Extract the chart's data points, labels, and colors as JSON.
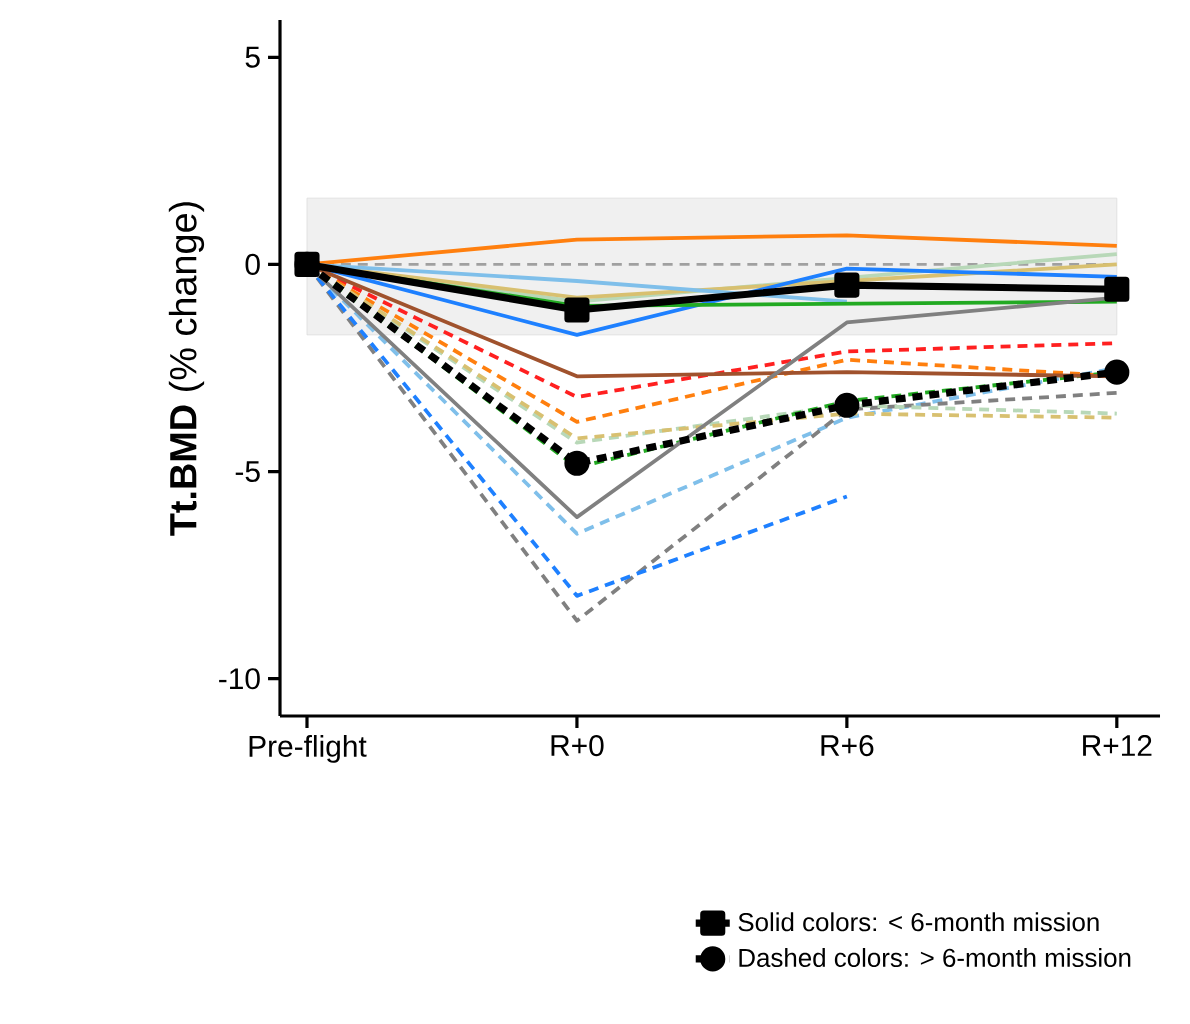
{
  "chart_data": {
    "type": "line",
    "ylabel": "**Tt.BMD** (% change)",
    "categories": [
      "Pre-flight",
      "R+0",
      "R+6",
      "R+12"
    ],
    "ylim": [
      -10.9,
      5.9
    ],
    "yticks": [
      -10,
      -5,
      0,
      5
    ],
    "grid": false,
    "legend": "bottom",
    "bands": [
      {
        "axis": "y",
        "from": -1.7,
        "to": 1.6,
        "color": "#f0f0f0"
      }
    ],
    "ref_lines": [
      {
        "axis": "y",
        "value": 0,
        "color": "#a0a0a0",
        "line_style": "dashed"
      }
    ],
    "series": [
      {
        "color": "#7fbfea",
        "line_style": "dashed",
        "marker": "none",
        "values": [
          0,
          -6.5,
          -3.7,
          -2.5
        ]
      },
      {
        "color": "#808080",
        "line_style": "dashed",
        "marker": "none",
        "values": [
          0,
          -8.6,
          -3.5,
          -3.1
        ]
      },
      {
        "color": "#1e80ff",
        "line_style": "dashed",
        "marker": "none",
        "values": [
          0,
          -8.0,
          -5.6,
          null
        ]
      },
      {
        "color": "#ff2020",
        "line_style": "dashed",
        "marker": "none",
        "values": [
          0,
          -3.2,
          -2.1,
          -1.9
        ]
      },
      {
        "color": "#ff7f0e",
        "line_style": "dashed",
        "marker": "none",
        "values": [
          0,
          -3.8,
          -2.3,
          -2.7
        ]
      },
      {
        "color": "#b8d8b8",
        "line_style": "dashed",
        "marker": "none",
        "values": [
          0,
          -4.3,
          -3.4,
          -3.6
        ]
      },
      {
        "color": "#d8c070",
        "line_style": "dashed",
        "marker": "none",
        "values": [
          0,
          -4.2,
          -3.6,
          -3.7
        ]
      },
      {
        "color": "#22aa22",
        "line_style": "dashed",
        "marker": "none",
        "values": [
          0,
          -4.9,
          -3.3,
          -2.6
        ]
      },
      {
        "color": "#ff7f0e",
        "line_style": "solid",
        "marker": "none",
        "values": [
          0,
          0.6,
          0.7,
          0.45
        ]
      },
      {
        "color": "#b8d8b8",
        "line_style": "solid",
        "marker": "none",
        "values": [
          0,
          -0.9,
          null,
          0.25
        ]
      },
      {
        "color": "#d8c070",
        "line_style": "solid",
        "marker": "none",
        "values": [
          0,
          -0.8,
          null,
          0.0
        ]
      },
      {
        "color": "#7fbfea",
        "line_style": "solid",
        "marker": "none",
        "values": [
          0,
          -0.4,
          -0.9,
          null
        ]
      },
      {
        "color": "#1e80ff",
        "line_style": "solid",
        "marker": "none",
        "values": [
          0,
          -1.7,
          -0.1,
          -0.3
        ]
      },
      {
        "color": "#22aa22",
        "line_style": "solid",
        "marker": "none",
        "values": [
          0,
          -1.0,
          null,
          -0.9
        ]
      },
      {
        "color": "#a0522d",
        "line_style": "solid",
        "marker": "none",
        "values": [
          0,
          -2.7,
          -2.6,
          -2.7
        ]
      },
      {
        "color": "#808080",
        "line_style": "solid",
        "marker": "none",
        "values": [
          0,
          -6.1,
          -1.4,
          -0.8
        ]
      },
      {
        "name": "Solid colors: < 6-month mission",
        "color": "#000000",
        "line_style": "solid",
        "marker": "square",
        "values": [
          0,
          -1.1,
          -0.5,
          -0.6
        ]
      },
      {
        "name": "Dashed colors: > 6-month mission",
        "color": "#000000",
        "line_style": "dashed",
        "marker": "circle",
        "values": [
          0,
          -4.8,
          -3.4,
          -2.6
        ]
      }
    ]
  }
}
